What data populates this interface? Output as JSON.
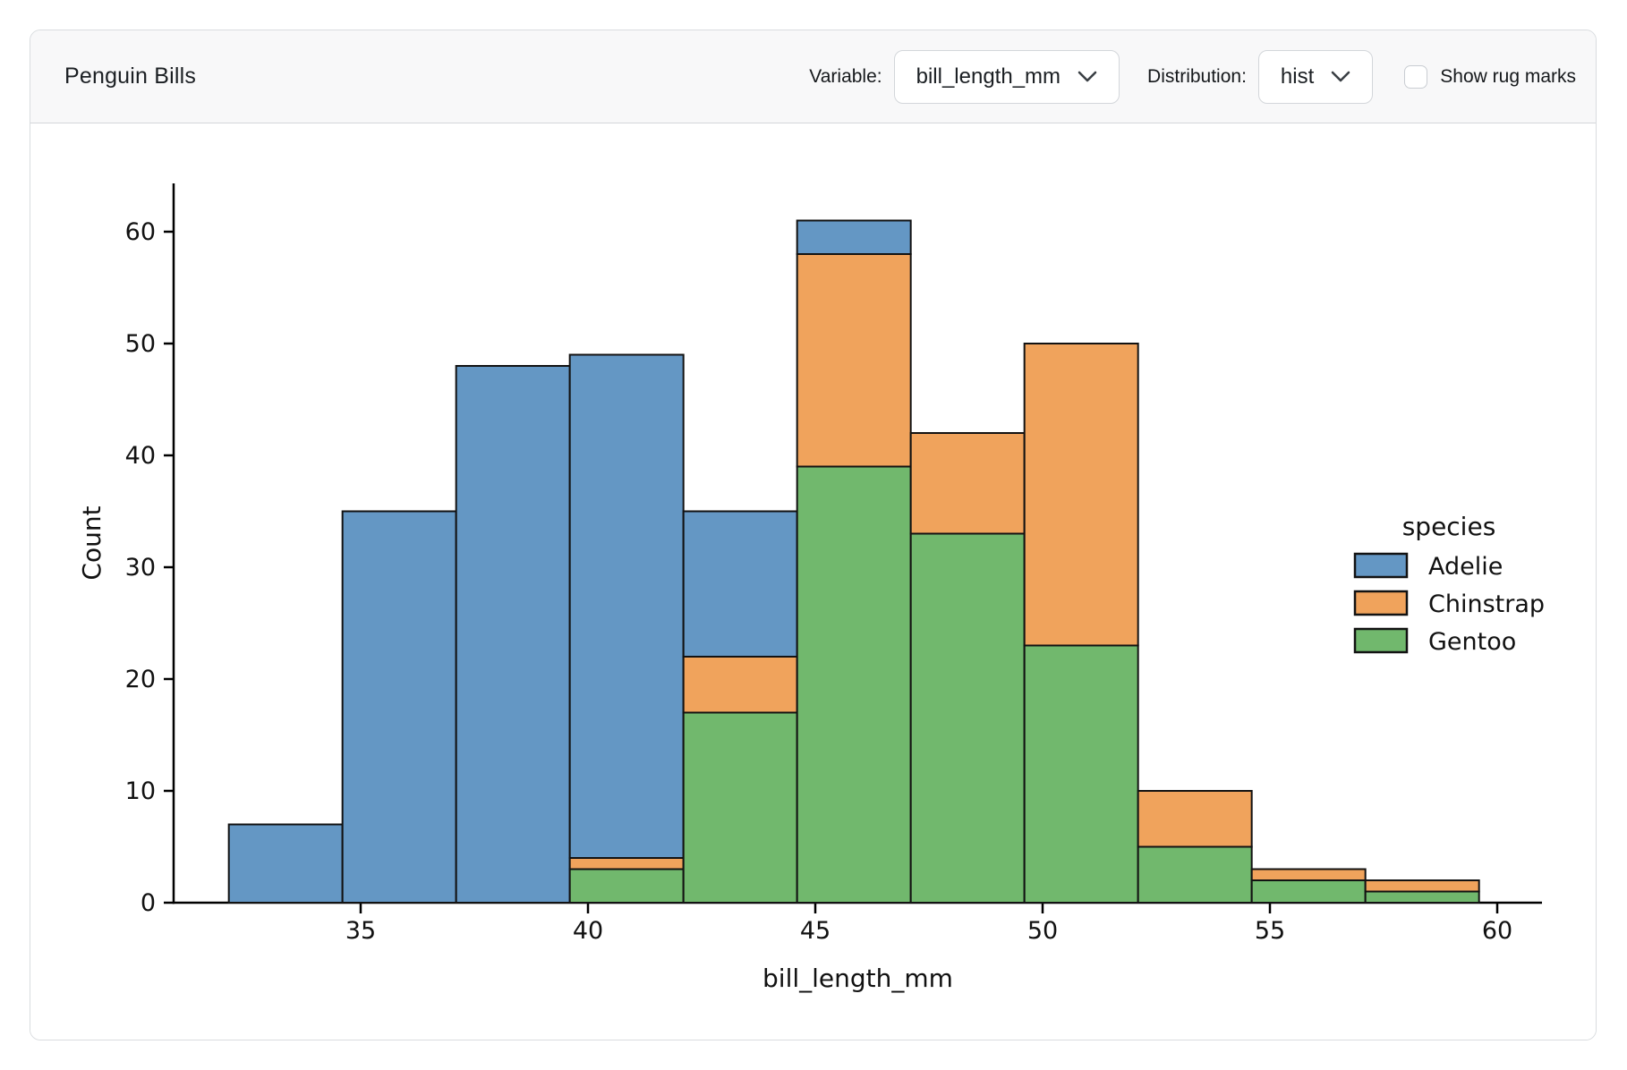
{
  "header": {
    "title": "Penguin Bills",
    "variable_label": "Variable:",
    "variable_value": "bill_length_mm",
    "distribution_label": "Distribution:",
    "distribution_value": "hist",
    "rug_label": "Show rug marks",
    "rug_checked": false,
    "chevron_icon": "chevron-down"
  },
  "chart_data": {
    "type": "bar",
    "subtype": "stacked-histogram",
    "title": "",
    "xlabel": "bill_length_mm",
    "ylabel": "Count",
    "bin_edges": [
      32.1,
      34.6,
      37.1,
      39.6,
      42.1,
      44.6,
      47.1,
      49.6,
      52.1,
      54.6,
      57.1,
      59.6
    ],
    "x_ticks": [
      35,
      40,
      45,
      50,
      55,
      60
    ],
    "y_ticks": [
      0,
      10,
      20,
      30,
      40,
      50,
      60
    ],
    "xlim": [
      30.9,
      61.0
    ],
    "ylim": [
      0,
      64.3
    ],
    "grid": false,
    "series": [
      {
        "name": "Adelie",
        "color": "#6497c4",
        "values": [
          7,
          35,
          48,
          45,
          13,
          3,
          0,
          0,
          0,
          0,
          0
        ]
      },
      {
        "name": "Chinstrap",
        "color": "#f0a35c",
        "values": [
          0,
          0,
          0,
          1,
          5,
          19,
          9,
          27,
          5,
          1,
          1
        ]
      },
      {
        "name": "Gentoo",
        "color": "#71b86d",
        "values": [
          0,
          0,
          0,
          3,
          17,
          39,
          33,
          23,
          5,
          2,
          1
        ]
      }
    ],
    "bin_totals": [
      7,
      35,
      48,
      49,
      35,
      61,
      42,
      50,
      10,
      3,
      2
    ],
    "stack_order_bottom_to_top": [
      "Gentoo",
      "Chinstrap",
      "Adelie"
    ],
    "legend": {
      "title": "species",
      "position": "right",
      "entries": [
        "Adelie",
        "Chinstrap",
        "Gentoo"
      ]
    },
    "bar_edge_color": "#121212",
    "axis_color": "#000000"
  }
}
